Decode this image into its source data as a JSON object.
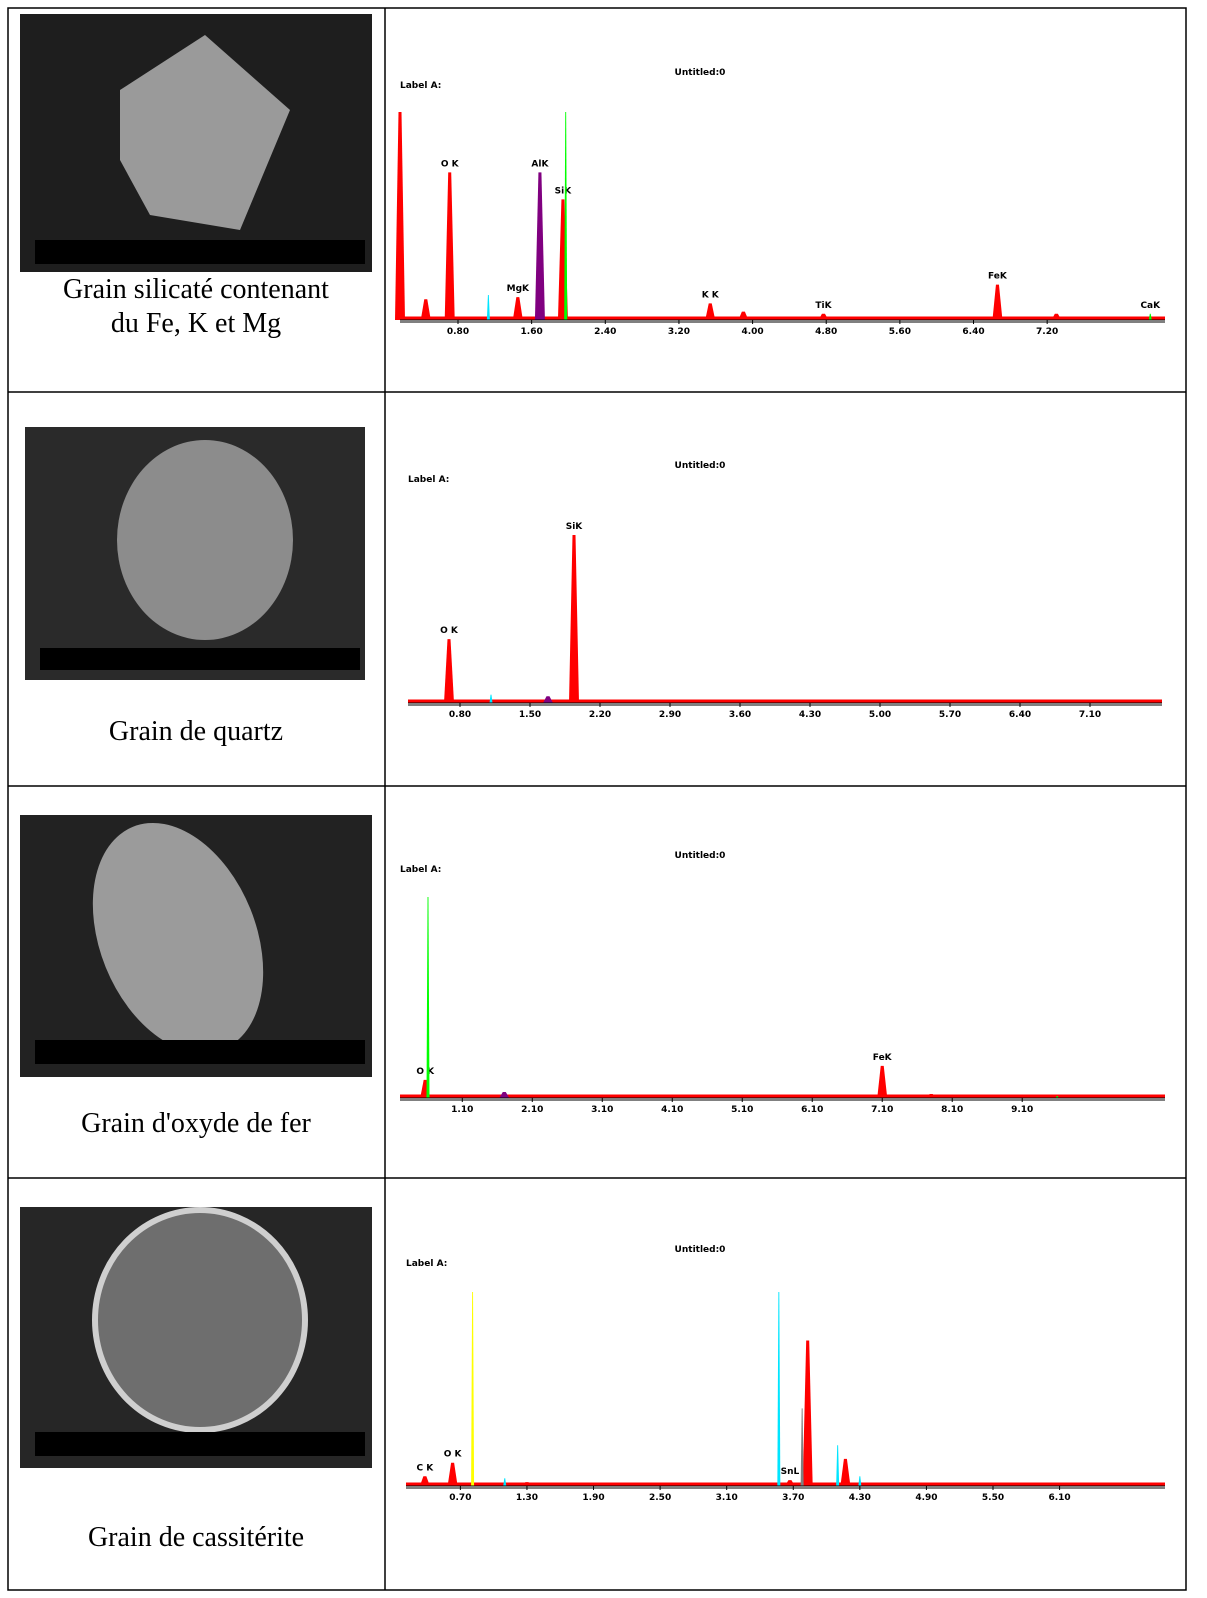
{
  "rows": [
    {
      "caption": [
        "Grain silicaté contenant",
        "du Fe, K et Mg"
      ],
      "spectrum": {
        "type": "spectrum",
        "title": "Untitled:0",
        "label": "Label A:",
        "xlim": [
          0.17,
          8.48
        ],
        "ylim": [
          0,
          100
        ],
        "xticks": [
          {
            "value": 0.8,
            "label": "0.80"
          },
          {
            "value": 1.6,
            "label": "1.60"
          },
          {
            "value": 2.4,
            "label": "2.40"
          },
          {
            "value": 3.2,
            "label": "3.20"
          },
          {
            "value": 4,
            "label": "4.00"
          },
          {
            "value": 4.8,
            "label": "4.80"
          },
          {
            "value": 5.6,
            "label": "5.60"
          },
          {
            "value": 6.4,
            "label": "6.40"
          },
          {
            "value": 7.2,
            "label": "7.20"
          }
        ],
        "peaks": [
          {
            "x": 0.17,
            "y": 100,
            "color": "#ff0000"
          },
          {
            "x": 0.45,
            "y": 10,
            "color": "#ff0000"
          },
          {
            "name": "O K",
            "x": 0.71,
            "y": 71,
            "color": "#ff0000"
          },
          {
            "x": 1.13,
            "y": 12,
            "color": "#00e5ff"
          },
          {
            "name": "MgK",
            "x": 1.45,
            "y": 11,
            "color": "#ff0000"
          },
          {
            "name": "AlK",
            "x": 1.69,
            "y": 71,
            "color": "#800080"
          },
          {
            "name": "SiK",
            "x": 1.94,
            "y": 58,
            "color": "#ff0000"
          },
          {
            "x": 1.97,
            "y": 100,
            "color": "#00ff00"
          },
          {
            "name": "K K",
            "x": 3.54,
            "y": 8,
            "color": "#ff0000"
          },
          {
            "x": 3.9,
            "y": 4,
            "color": "#ff0000"
          },
          {
            "name": "TiK",
            "x": 4.77,
            "y": 3,
            "color": "#ff0000"
          },
          {
            "name": "FeK",
            "x": 6.66,
            "y": 17,
            "color": "#ff0000"
          },
          {
            "x": 7.3,
            "y": 3,
            "color": "#ff0000"
          },
          {
            "name": "CaK",
            "x": 8.32,
            "y": 3,
            "color": "#00ff00"
          }
        ]
      }
    },
    {
      "caption": [
        "Grain de quartz"
      ],
      "spectrum": {
        "type": "spectrum",
        "title": "Untitled:0",
        "label": "Label A:",
        "xlim": [
          0.28,
          7.82
        ],
        "ylim": [
          0,
          100
        ],
        "xticks": [
          {
            "value": 0.8,
            "label": "0.80"
          },
          {
            "value": 1.5,
            "label": "1.50"
          },
          {
            "value": 2.2,
            "label": "2.20"
          },
          {
            "value": 2.9,
            "label": "2.90"
          },
          {
            "value": 3.6,
            "label": "3.60"
          },
          {
            "value": 4.3,
            "label": "4.30"
          },
          {
            "value": 5,
            "label": "5.00"
          },
          {
            "value": 5.7,
            "label": "5.70"
          },
          {
            "value": 6.4,
            "label": "6.40"
          },
          {
            "value": 7.1,
            "label": "7.10"
          }
        ],
        "peaks": [
          {
            "name": "O K",
            "x": 0.69,
            "y": 38,
            "color": "#ff0000"
          },
          {
            "x": 1.11,
            "y": 5,
            "color": "#00e5ff"
          },
          {
            "x": 1.68,
            "y": 4,
            "color": "#800080"
          },
          {
            "name": "SiK",
            "x": 1.94,
            "y": 100,
            "color": "#ff0000"
          }
        ]
      }
    },
    {
      "caption": [
        "Grain d'oxyde de fer"
      ],
      "spectrum": {
        "type": "spectrum",
        "title": "Untitled:0",
        "label": "Label A:",
        "xlim": [
          0.21,
          11.14
        ],
        "ylim": [
          0,
          100
        ],
        "xticks": [
          {
            "value": 1.1,
            "label": "1.10"
          },
          {
            "value": 2.1,
            "label": "2.10"
          },
          {
            "value": 3.1,
            "label": "3.10"
          },
          {
            "value": 4.1,
            "label": "4.10"
          },
          {
            "value": 5.1,
            "label": "5.10"
          },
          {
            "value": 6.1,
            "label": "6.10"
          },
          {
            "value": 7.1,
            "label": "7.10"
          },
          {
            "value": 8.1,
            "label": "8.10"
          },
          {
            "value": 9.1,
            "label": "9.10"
          }
        ],
        "peaks": [
          {
            "name": "O K",
            "x": 0.57,
            "y": 9,
            "color": "#ff0000"
          },
          {
            "x": 0.61,
            "y": 100,
            "color": "#00ff00"
          },
          {
            "x": 1.7,
            "y": 3,
            "color": "#800080"
          },
          {
            "name": "FeK",
            "x": 7.1,
            "y": 16,
            "color": "#ff0000"
          },
          {
            "x": 7.8,
            "y": 2,
            "color": "#ff0000"
          },
          {
            "x": 9.6,
            "y": 1,
            "color": "#00ff00"
          }
        ]
      }
    },
    {
      "caption": [
        "Grain de cassitérite"
      ],
      "spectrum": {
        "type": "spectrum",
        "title": "Untitled:0",
        "label": "Label A:",
        "xlim": [
          0.21,
          7.05
        ],
        "ylim": [
          0,
          100
        ],
        "xticks": [
          {
            "value": 0.7,
            "label": "0.70"
          },
          {
            "value": 1.3,
            "label": "1.30"
          },
          {
            "value": 1.9,
            "label": "1.90"
          },
          {
            "value": 2.5,
            "label": "2.50"
          },
          {
            "value": 3.1,
            "label": "3.10"
          },
          {
            "value": 3.7,
            "label": "3.70"
          },
          {
            "value": 4.3,
            "label": "4.30"
          },
          {
            "value": 4.9,
            "label": "4.90"
          },
          {
            "value": 5.5,
            "label": "5.50"
          },
          {
            "value": 6.1,
            "label": "6.10"
          }
        ],
        "peaks": [
          {
            "name": "C K",
            "x": 0.38,
            "y": 5,
            "color": "#ff0000"
          },
          {
            "name": "O K",
            "x": 0.63,
            "y": 12,
            "color": "#ff0000"
          },
          {
            "x": 0.81,
            "y": 100,
            "color": "#ffff00"
          },
          {
            "x": 1.1,
            "y": 4,
            "color": "#00e5ff"
          },
          {
            "x": 1.3,
            "y": 2,
            "color": "#ff0000"
          },
          {
            "x": 3.57,
            "y": 100,
            "color": "#00e5ff"
          },
          {
            "name": "SnL",
            "x": 3.67,
            "y": 3,
            "color": "#ff0000"
          },
          {
            "x": 3.83,
            "y": 75,
            "color": "#ff0000"
          },
          {
            "x": 3.78,
            "y": 40,
            "color": "#808080"
          },
          {
            "x": 4.1,
            "y": 21,
            "color": "#00e5ff"
          },
          {
            "x": 4.17,
            "y": 14,
            "color": "#ff0000"
          },
          {
            "x": 4.3,
            "y": 5,
            "color": "#00e5ff"
          }
        ]
      }
    }
  ]
}
